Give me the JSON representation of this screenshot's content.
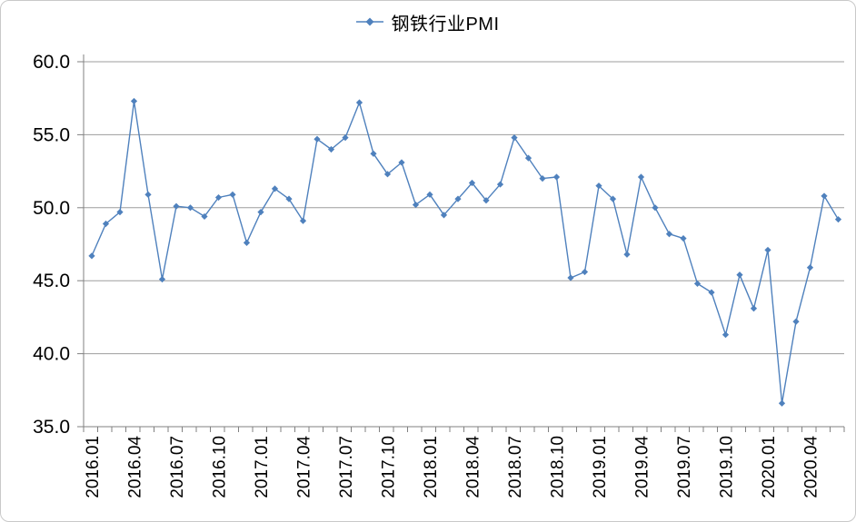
{
  "legend": {
    "label": "钢铁行业PMI"
  },
  "chart_data": {
    "type": "line",
    "title": "钢铁行业PMI",
    "series_name": "钢铁行业PMI",
    "categories": [
      "2016.01",
      "2016.02",
      "2016.03",
      "2016.04",
      "2016.05",
      "2016.06",
      "2016.07",
      "2016.08",
      "2016.09",
      "2016.10",
      "2016.11",
      "2016.12",
      "2017.01",
      "2017.02",
      "2017.03",
      "2017.04",
      "2017.05",
      "2017.06",
      "2017.07",
      "2017.08",
      "2017.09",
      "2017.10",
      "2017.11",
      "2017.12",
      "2018.01",
      "2018.02",
      "2018.03",
      "2018.04",
      "2018.05",
      "2018.06",
      "2018.07",
      "2018.08",
      "2018.09",
      "2018.10",
      "2018.11",
      "2018.12",
      "2019.01",
      "2019.02",
      "2019.03",
      "2019.04",
      "2019.05",
      "2019.06",
      "2019.07",
      "2019.08",
      "2019.09",
      "2019.10",
      "2019.11",
      "2019.12",
      "2020.01",
      "2020.02",
      "2020.03",
      "2020.04",
      "2020.05",
      "2020.06"
    ],
    "values": [
      46.7,
      48.9,
      49.7,
      57.3,
      50.9,
      45.1,
      50.1,
      50.0,
      49.4,
      50.7,
      50.9,
      47.6,
      49.7,
      51.3,
      50.6,
      49.1,
      54.7,
      54.0,
      54.8,
      57.2,
      53.7,
      52.3,
      53.1,
      50.2,
      50.9,
      49.5,
      50.6,
      51.7,
      50.5,
      51.6,
      54.8,
      53.4,
      52.0,
      52.1,
      45.2,
      45.6,
      51.5,
      50.6,
      46.8,
      52.1,
      50.0,
      48.2,
      47.9,
      44.8,
      44.2,
      41.3,
      45.4,
      43.1,
      47.1,
      36.6,
      42.2,
      45.9,
      50.8,
      49.2
    ],
    "ylim": [
      35.0,
      60.0
    ],
    "ytick_step": 5,
    "ytick_labels": [
      "35.0",
      "40.0",
      "45.0",
      "50.0",
      "55.0",
      "60.0"
    ],
    "xtick_every": 3,
    "grid": "horizontal",
    "legend_position": "top-center",
    "colors": {
      "line": "#4F81BD",
      "marker": "#4F81BD",
      "gridline": "#9d9d9d",
      "axis": "#808080",
      "text": "#000000"
    }
  }
}
